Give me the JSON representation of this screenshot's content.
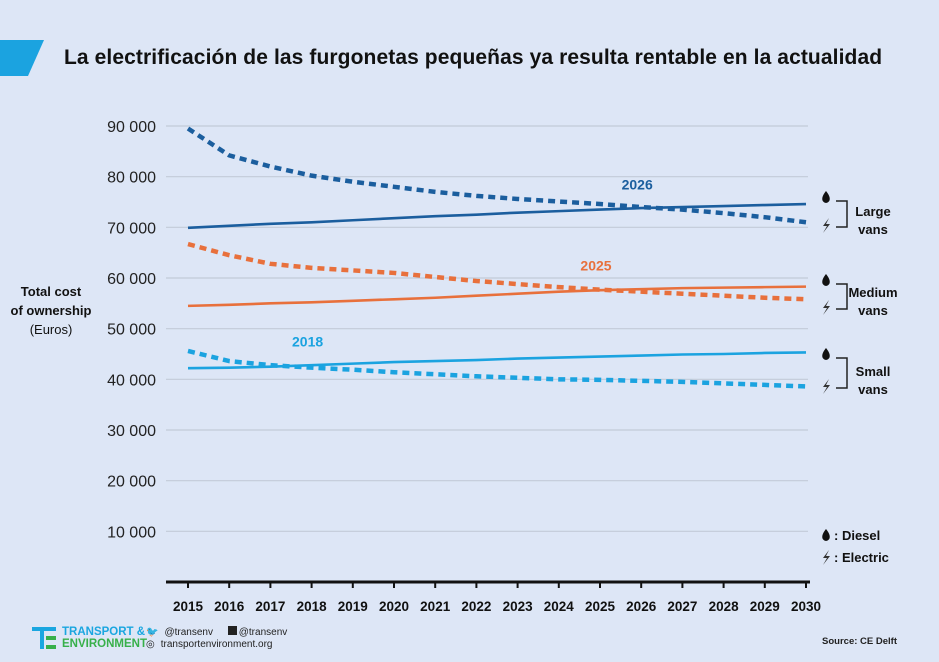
{
  "header": {
    "title": "La electrificación de las furgonetas pequeñas ya resulta rentable en la actualidad",
    "accent_color": "#1ba3e0"
  },
  "yaxis_label": {
    "line1": "Total cost",
    "line2": "of ownership",
    "unit": "(Euros)"
  },
  "legend": {
    "groups": [
      {
        "label_line1": "Large",
        "label_line2": "vans"
      },
      {
        "label_line1": "Medium",
        "label_line2": "vans"
      },
      {
        "label_line1": "Small",
        "label_line2": "vans"
      }
    ],
    "key": [
      {
        "icon": "drop-icon",
        "label": ": Diesel"
      },
      {
        "icon": "lightning-icon",
        "label": ": Electric"
      }
    ]
  },
  "footer": {
    "logo_line1": "TRANSPORT &",
    "logo_line2": "ENVIRONMENT",
    "twitter": "@transenv",
    "facebook": "@transenv",
    "website": "transportenvironment.org",
    "source": "Source: CE Delft"
  },
  "chart_data": {
    "type": "line",
    "title": "La electrificación de las furgonetas pequeñas ya resulta rentable en la actualidad",
    "xlabel": "",
    "ylabel": "Total cost of ownership (Euros)",
    "x": [
      2015,
      2016,
      2017,
      2018,
      2019,
      2020,
      2021,
      2022,
      2023,
      2024,
      2025,
      2026,
      2027,
      2028,
      2029,
      2030
    ],
    "x_tick_labels": [
      "2015",
      "2016",
      "2017",
      "2018",
      "2019",
      "2020",
      "2021",
      "2022",
      "2023",
      "2024",
      "2025",
      "2026",
      "2027",
      "2028",
      "2029",
      "2030"
    ],
    "ylim": [
      0,
      90000
    ],
    "y_ticks": [
      10000,
      20000,
      30000,
      40000,
      50000,
      60000,
      70000,
      80000,
      90000
    ],
    "y_tick_labels": [
      "10 000",
      "20 000",
      "30 000",
      "40 000",
      "50 000",
      "60 000",
      "70 000",
      "80 000",
      "90 000"
    ],
    "grid": true,
    "legend_position": "right",
    "series": [
      {
        "name": "Large vans - Diesel",
        "color": "#1b5e9e",
        "style": "solid",
        "values": [
          69900,
          70300,
          70700,
          71000,
          71400,
          71800,
          72200,
          72500,
          72900,
          73200,
          73500,
          73800,
          74000,
          74200,
          74400,
          74600
        ]
      },
      {
        "name": "Large vans - Electric",
        "color": "#1b5e9e",
        "style": "dashed",
        "values": [
          89500,
          84200,
          82000,
          80200,
          79000,
          78000,
          77000,
          76200,
          75600,
          75100,
          74600,
          74000,
          73500,
          72800,
          72000,
          71000
        ]
      },
      {
        "name": "Medium vans - Diesel",
        "color": "#e8703c",
        "style": "solid",
        "values": [
          54500,
          54700,
          55000,
          55200,
          55500,
          55800,
          56100,
          56500,
          56900,
          57300,
          57600,
          57800,
          58000,
          58100,
          58200,
          58300
        ]
      },
      {
        "name": "Medium vans - Electric",
        "color": "#e8703c",
        "style": "dashed",
        "values": [
          66700,
          64500,
          62800,
          62000,
          61500,
          61000,
          60200,
          59400,
          58800,
          58200,
          57700,
          57300,
          56900,
          56500,
          56100,
          55800
        ]
      },
      {
        "name": "Small vans - Diesel",
        "color": "#1ba3e0",
        "style": "solid",
        "values": [
          42200,
          42300,
          42500,
          42800,
          43100,
          43400,
          43600,
          43800,
          44100,
          44300,
          44500,
          44700,
          44900,
          45000,
          45200,
          45300
        ]
      },
      {
        "name": "Small vans - Electric",
        "color": "#1ba3e0",
        "style": "dashed",
        "values": [
          45600,
          43600,
          42800,
          42300,
          41900,
          41400,
          41000,
          40600,
          40300,
          40000,
          39900,
          39700,
          39500,
          39200,
          38900,
          38600
        ]
      }
    ],
    "annotations": [
      {
        "text": "2026",
        "x": 2026,
        "y": 77500,
        "color": "#1b5e9e"
      },
      {
        "text": "2025",
        "x": 2025,
        "y": 61500,
        "color": "#e8703c"
      },
      {
        "text": "2018",
        "x": 2018,
        "y": 46500,
        "color": "#1ba3e0"
      }
    ]
  }
}
